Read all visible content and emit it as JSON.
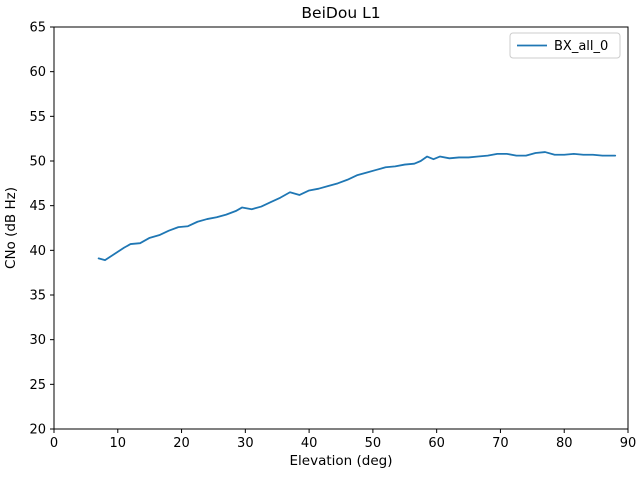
{
  "chart_data": {
    "type": "line",
    "title": "BeiDou L1",
    "xlabel": "Elevation (deg)",
    "ylabel": "CNo (dB Hz)",
    "xlim": [
      0,
      90
    ],
    "ylim": [
      20,
      65
    ],
    "xticks": [
      0,
      10,
      20,
      30,
      40,
      50,
      60,
      70,
      80,
      90
    ],
    "yticks": [
      20,
      25,
      30,
      35,
      40,
      45,
      50,
      55,
      60,
      65
    ],
    "grid": false,
    "legend": {
      "position": "upper right",
      "entries": [
        "BX_all_0"
      ]
    },
    "series": [
      {
        "name": "BX_all_0",
        "color": "#1f77b4",
        "x": [
          7,
          8,
          9.5,
          11,
          12,
          13.5,
          15,
          16.5,
          18,
          19.5,
          21,
          22.5,
          24,
          25.5,
          27,
          28.5,
          29.5,
          31,
          32.5,
          34,
          35.5,
          37,
          38.5,
          40,
          41.5,
          43,
          44.5,
          46,
          47.5,
          49,
          50.5,
          52,
          53.5,
          55,
          56.5,
          57.5,
          58.5,
          59.5,
          60.5,
          62,
          63.5,
          65,
          66.5,
          68,
          69.5,
          71,
          72.5,
          74,
          75.5,
          77,
          78.5,
          80,
          81.5,
          83,
          84.5,
          86,
          88
        ],
        "y": [
          39.1,
          38.9,
          39.6,
          40.3,
          40.7,
          40.8,
          41.4,
          41.7,
          42.2,
          42.6,
          42.7,
          43.2,
          43.5,
          43.7,
          44.0,
          44.4,
          44.8,
          44.6,
          44.9,
          45.4,
          45.9,
          46.5,
          46.2,
          46.7,
          46.9,
          47.2,
          47.5,
          47.9,
          48.4,
          48.7,
          49.0,
          49.3,
          49.4,
          49.6,
          49.7,
          50.0,
          50.5,
          50.2,
          50.5,
          50.3,
          50.4,
          50.4,
          50.5,
          50.6,
          50.8,
          50.8,
          50.6,
          50.6,
          50.9,
          51.0,
          50.7,
          50.7,
          50.8,
          50.7,
          50.7,
          50.6,
          50.6
        ]
      }
    ]
  },
  "colors": {
    "line": "#1f77b4",
    "axis": "#000000",
    "legend_border": "#cccccc",
    "background": "#ffffff"
  }
}
